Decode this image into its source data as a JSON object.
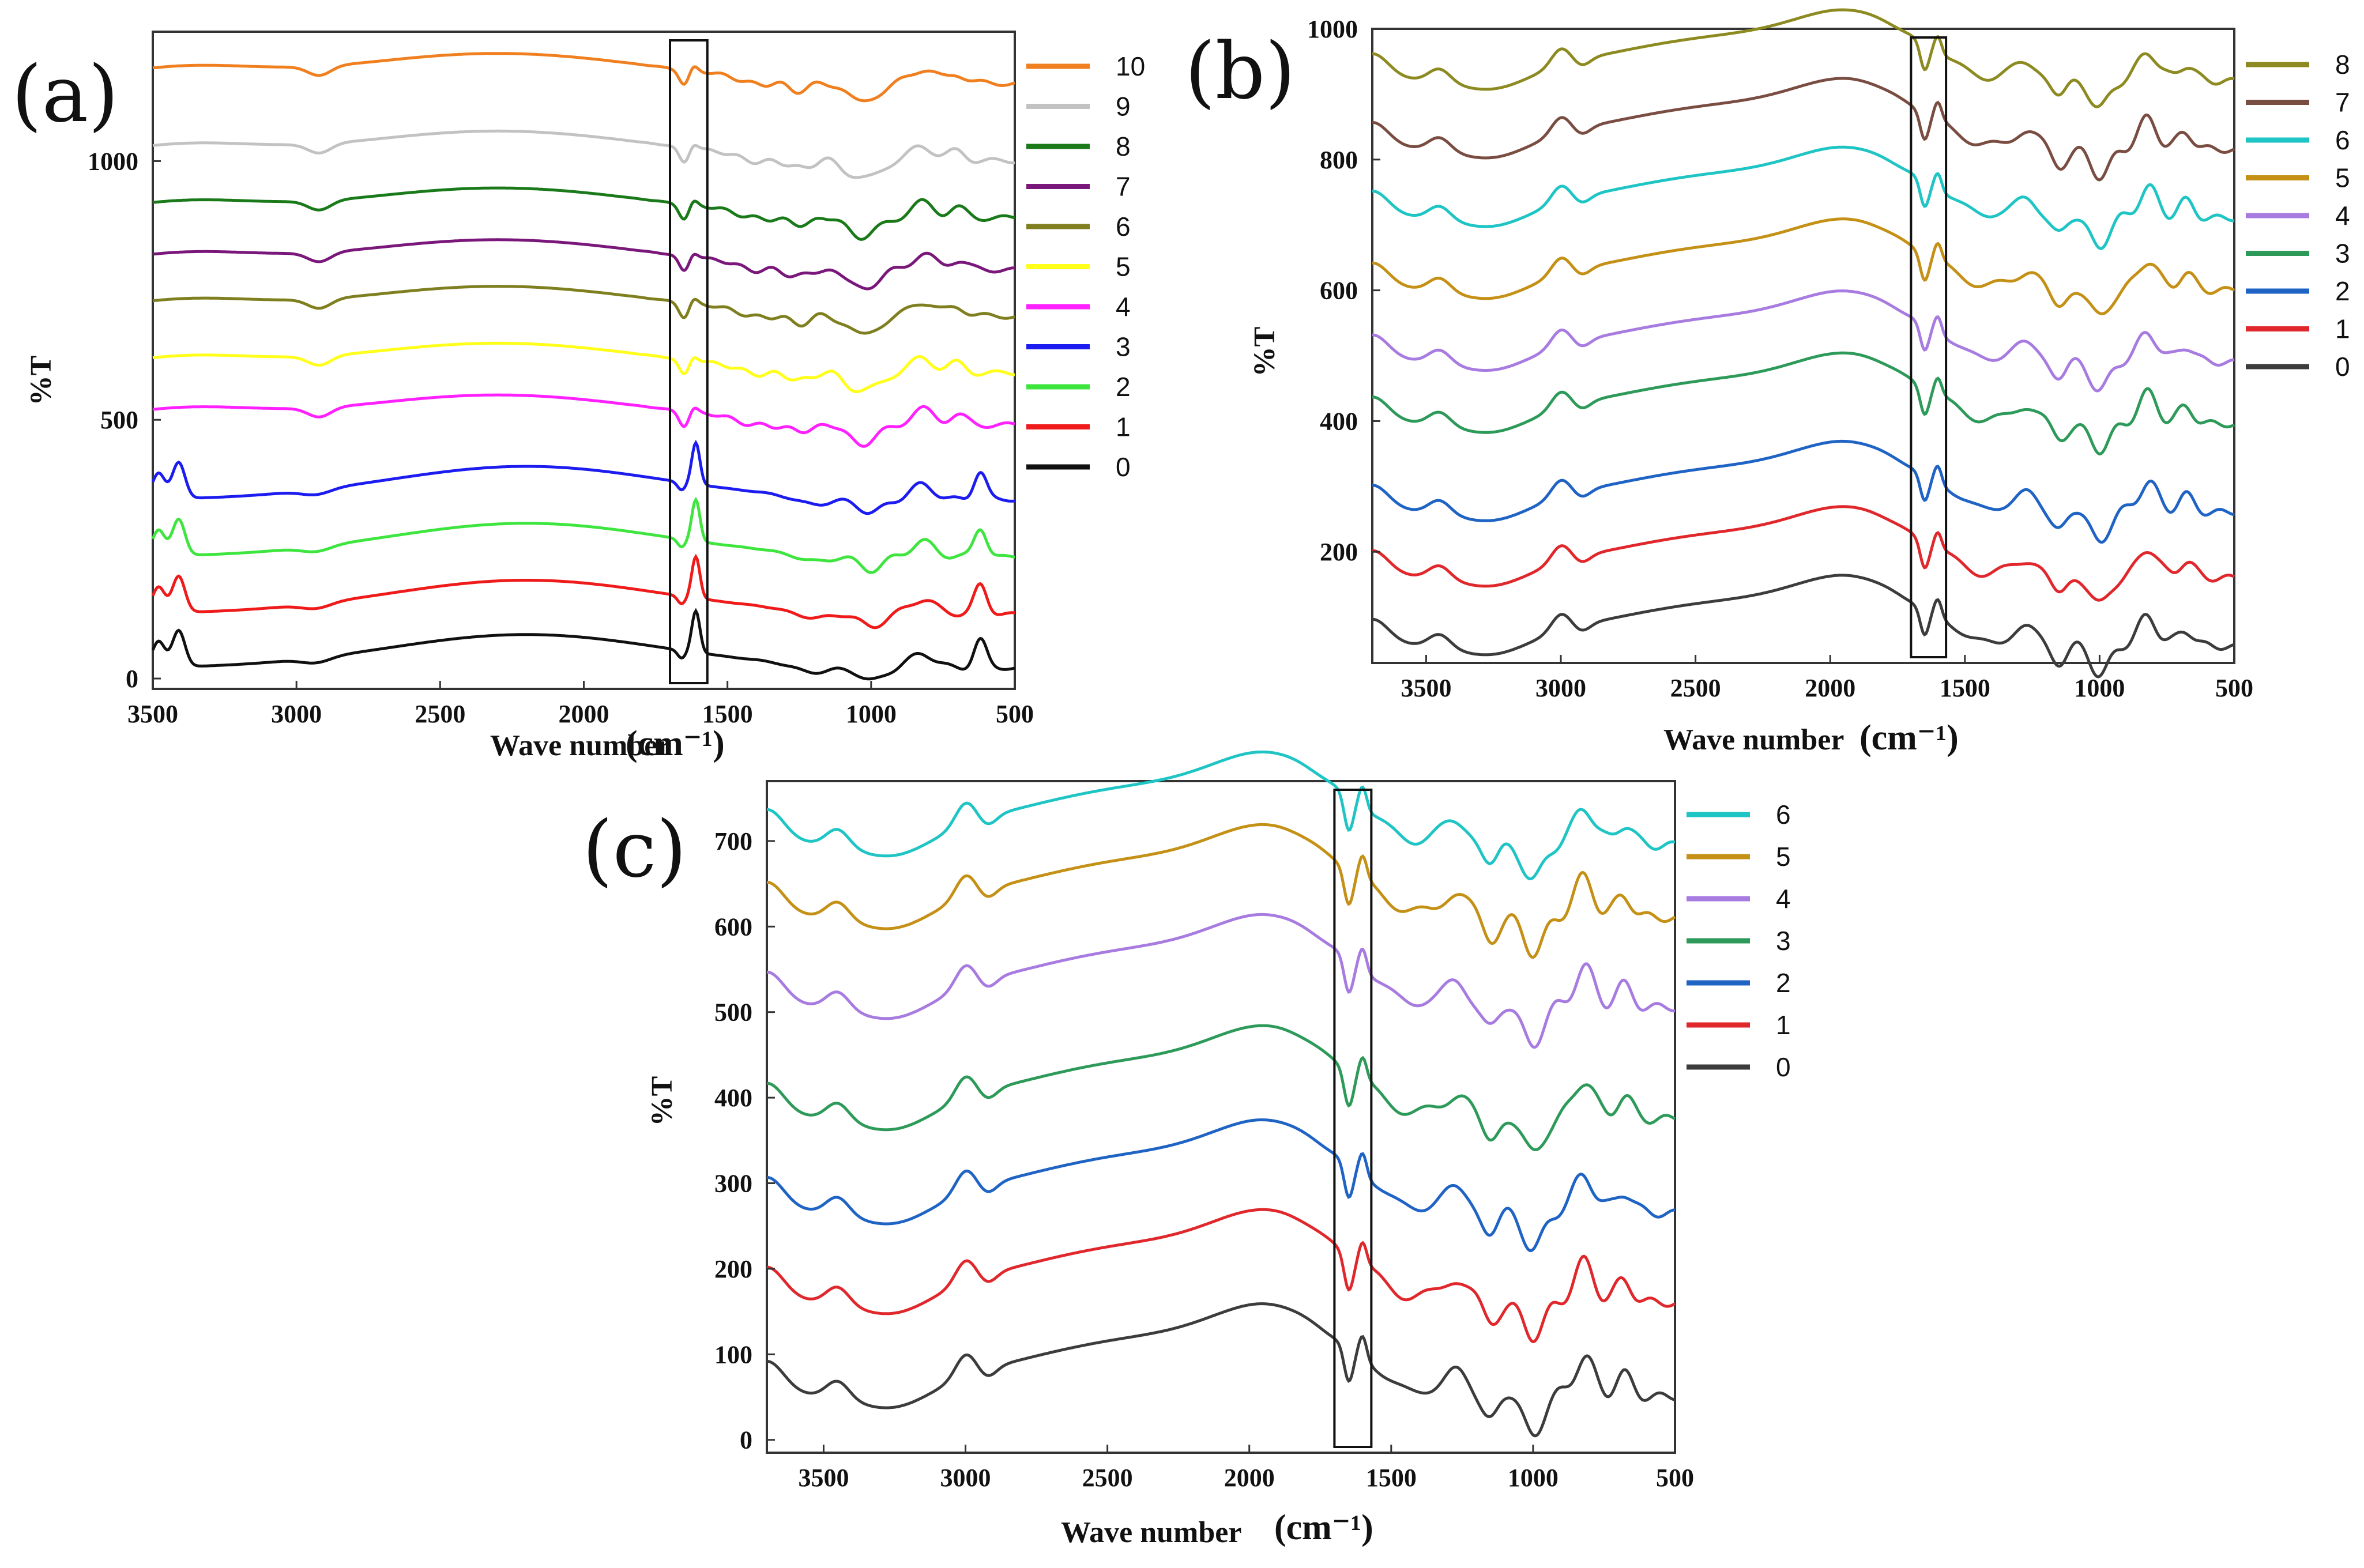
{
  "chart_data": [
    {
      "panel": "(a)",
      "type": "line",
      "xlabel": "Wave number",
      "xunit": "(cm⁻¹)",
      "ylabel": "%T",
      "xlim": [
        3500,
        500
      ],
      "ylim": [
        -20,
        1250
      ],
      "xticks": [
        3500,
        3000,
        2500,
        2000,
        1500,
        1000,
        500
      ],
      "yticks": [
        0,
        500,
        1000
      ],
      "highlight_band": [
        1700,
        1570
      ],
      "legend_position": "right",
      "series": [
        {
          "name": "10",
          "color": "#f07f1f",
          "offset": 1160,
          "profile": "A"
        },
        {
          "name": "9",
          "color": "#c2c2c2",
          "offset": 1010,
          "profile": "A"
        },
        {
          "name": "8",
          "color": "#1a7a1a",
          "offset": 900,
          "profile": "A"
        },
        {
          "name": "7",
          "color": "#7a177a",
          "offset": 800,
          "profile": "A"
        },
        {
          "name": "6",
          "color": "#7f7f20",
          "offset": 710,
          "profile": "A"
        },
        {
          "name": "5",
          "color": "#ffff1a",
          "offset": 600,
          "profile": "A"
        },
        {
          "name": "4",
          "color": "#ff20ff",
          "offset": 500,
          "profile": "A"
        },
        {
          "name": "3",
          "color": "#1c1cf0",
          "offset": 345,
          "profile": "B"
        },
        {
          "name": "2",
          "color": "#3fe53f",
          "offset": 235,
          "profile": "B"
        },
        {
          "name": "1",
          "color": "#ef1a1a",
          "offset": 125,
          "profile": "B"
        },
        {
          "name": "0",
          "color": "#101010",
          "offset": 20,
          "profile": "B"
        }
      ]
    },
    {
      "panel": "(b)",
      "type": "line",
      "xlabel": "Wave number",
      "xunit": "(cm⁻¹)",
      "ylabel": "%T",
      "xlim": [
        3700,
        500
      ],
      "ylim": [
        30,
        1000
      ],
      "xticks": [
        3500,
        3000,
        2500,
        2000,
        1500,
        1000,
        500
      ],
      "yticks": [
        200,
        400,
        600,
        800,
        1000
      ],
      "highlight_band": [
        1700,
        1570
      ],
      "legend_position": "right",
      "series": [
        {
          "name": "8",
          "color": "#8c8a20",
          "offset": 925,
          "profile": "C"
        },
        {
          "name": "7",
          "color": "#7a4d42",
          "offset": 820,
          "profile": "C"
        },
        {
          "name": "6",
          "color": "#1fc4c4",
          "offset": 715,
          "profile": "C"
        },
        {
          "name": "5",
          "color": "#c49015",
          "offset": 605,
          "profile": "C"
        },
        {
          "name": "4",
          "color": "#a77be0",
          "offset": 495,
          "profile": "C"
        },
        {
          "name": "3",
          "color": "#2e9a5a",
          "offset": 400,
          "profile": "C"
        },
        {
          "name": "2",
          "color": "#1f63c4",
          "offset": 265,
          "profile": "C"
        },
        {
          "name": "1",
          "color": "#e0282c",
          "offset": 165,
          "profile": "C"
        },
        {
          "name": "0",
          "color": "#3c3c3c",
          "offset": 60,
          "profile": "C"
        }
      ]
    },
    {
      "panel": "(c)",
      "type": "line",
      "xlabel": "Wave number",
      "xunit": "(cm⁻¹)",
      "ylabel": "%T",
      "xlim": [
        3700,
        500
      ],
      "ylim": [
        -15,
        770
      ],
      "xticks": [
        3500,
        3000,
        2500,
        2000,
        1500,
        1000,
        500
      ],
      "yticks": [
        0,
        100,
        200,
        300,
        400,
        500,
        600,
        700
      ],
      "highlight_band": [
        1700,
        1570
      ],
      "legend_position": "right",
      "series": [
        {
          "name": "6",
          "color": "#1fc4c4",
          "offset": 700,
          "profile": "C"
        },
        {
          "name": "5",
          "color": "#c49015",
          "offset": 615,
          "profile": "C"
        },
        {
          "name": "4",
          "color": "#a77be0",
          "offset": 510,
          "profile": "C"
        },
        {
          "name": "3",
          "color": "#2e9a5a",
          "offset": 380,
          "profile": "C"
        },
        {
          "name": "2",
          "color": "#1f63c4",
          "offset": 270,
          "profile": "C"
        },
        {
          "name": "1",
          "color": "#e0282c",
          "offset": 165,
          "profile": "C"
        },
        {
          "name": "0",
          "color": "#3c3c3c",
          "offset": 55,
          "profile": "C"
        }
      ]
    }
  ]
}
